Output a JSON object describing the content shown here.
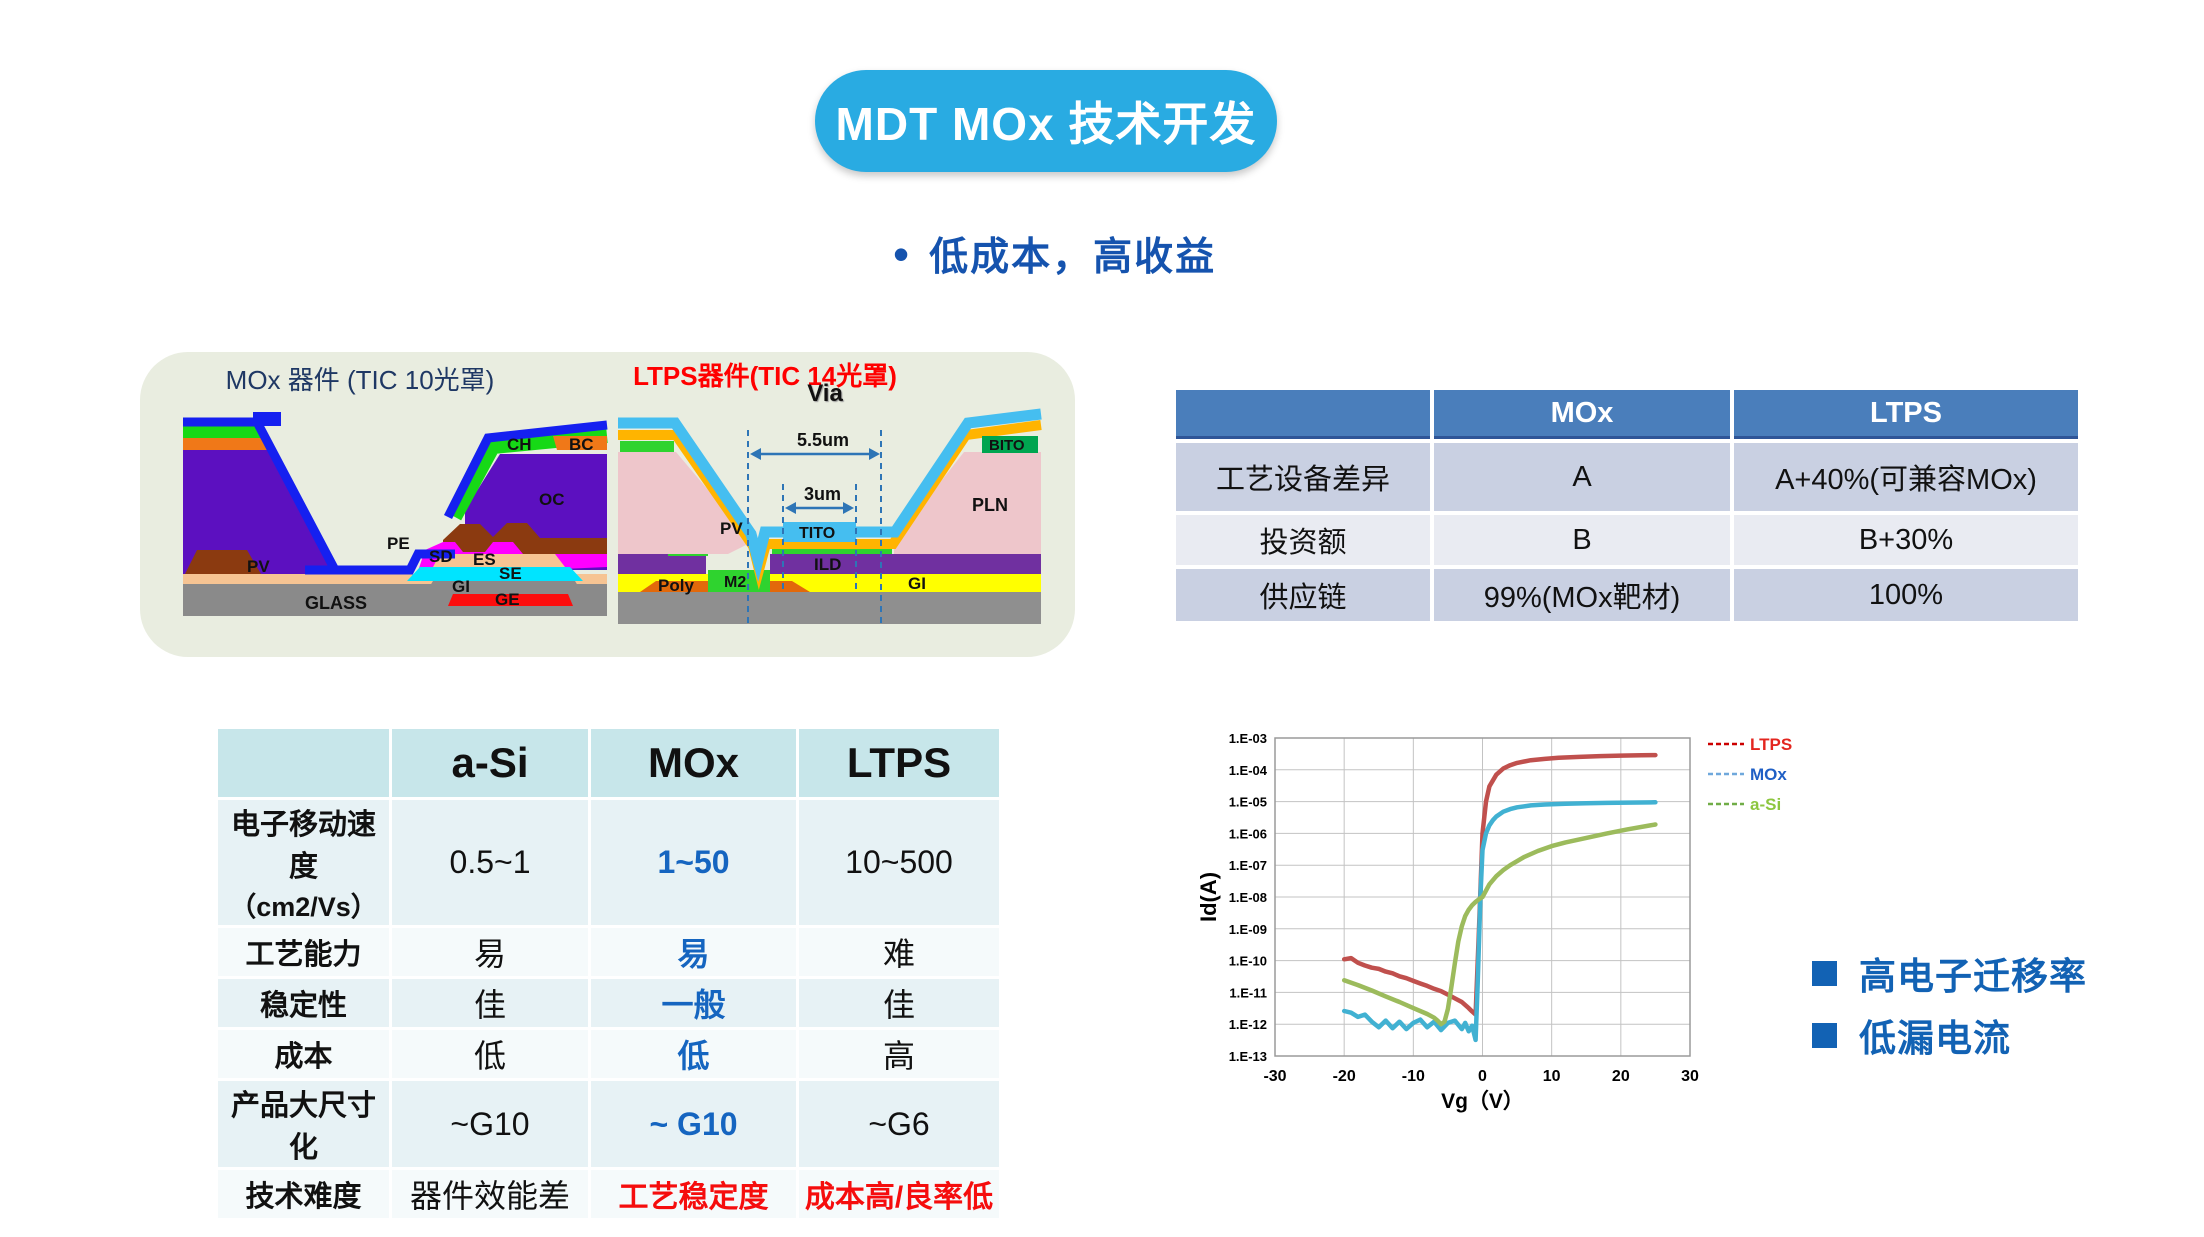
{
  "title": "MDT MOx 技术开发",
  "subtitle": "低成本，高收益",
  "diagrams": {
    "panel": {
      "mox_title": "MOx 器件 (TIC 10光罩)",
      "ltps_title": "LTPS器件(TIC 14光罩)",
      "via": "Via"
    },
    "mox_labels": {
      "ch": "CH",
      "bc": "BC",
      "oc": "OC",
      "pe": "PE",
      "pv": "PV",
      "sd": "SD",
      "es": "ES",
      "se": "SE",
      "gi": "GI",
      "ge": "GE",
      "glass": "GLASS"
    },
    "ltps_labels": {
      "bito": "BITO",
      "pln": "PLN",
      "pv": "PV",
      "tito": "TITO",
      "ild": "ILD",
      "m2": "M2",
      "poly": "Poly",
      "gi": "GI",
      "dim_outer": "5.5um",
      "dim_inner": "3um"
    }
  },
  "process_table": {
    "col_headers": [
      "MOx",
      "LTPS"
    ],
    "rows": [
      {
        "label": "工艺设备差异",
        "cells": [
          "A",
          "A+40%(可兼容MOx)"
        ]
      },
      {
        "label": "投资额",
        "cells": [
          "B",
          "B+30%"
        ]
      },
      {
        "label": "供应链",
        "cells": [
          "99%(MOx靶材)",
          "100%"
        ]
      }
    ]
  },
  "compare_table": {
    "col_headers": [
      "a-Si",
      "MOx",
      "LTPS"
    ],
    "rows": [
      {
        "label": "电子移动速度",
        "label2": "（cm2/Vs）",
        "cells": [
          "0.5~1",
          "1~50",
          "10~500"
        ]
      },
      {
        "label": "工艺能力",
        "cells": [
          "易",
          "易",
          "难"
        ]
      },
      {
        "label": "稳定性",
        "cells": [
          "佳",
          "一般",
          "佳"
        ]
      },
      {
        "label": "成本",
        "cells": [
          "低",
          "低",
          "高"
        ]
      },
      {
        "label": "产品大尺寸化",
        "cells": [
          "~G10",
          "~ G10",
          "~G6"
        ]
      },
      {
        "label": "技术难度",
        "cells": [
          "器件效能差",
          "工艺稳定度",
          "成本高/良率低"
        ]
      }
    ]
  },
  "chart_data": {
    "type": "line",
    "title": "",
    "xlabel": "Vg（V）",
    "ylabel": "Id(A)",
    "xlim": [
      -30,
      30
    ],
    "x_ticks": [
      -30,
      -20,
      -10,
      0,
      10,
      20,
      30
    ],
    "ylog_exp_range": [
      -3,
      -13
    ],
    "y_tick_labels": [
      "1.E-03",
      "1.E-04",
      "1.E-05",
      "1.E-06",
      "1.E-07",
      "1.E-08",
      "1.E-09",
      "1.E-10",
      "1.E-11",
      "1.E-12",
      "1.E-13"
    ],
    "grid": true,
    "legend_position": "right",
    "colors": {
      "grid": "#C3C3C3",
      "border": "#9A9A9A"
    },
    "series": [
      {
        "name": "LTPS",
        "color": "#C0504D",
        "dash_color": "#CC0000",
        "text_color": "#E3261F",
        "x": [
          -20,
          -19,
          -18,
          -17,
          -16,
          -15,
          -14,
          -13,
          -12,
          -11,
          -10,
          -9,
          -8,
          -7,
          -6,
          -5,
          -4,
          -3,
          -2,
          -1.5,
          -1,
          -0.5,
          0,
          0.5,
          1,
          2,
          3,
          4,
          5,
          7,
          9,
          11,
          14,
          17,
          20,
          23,
          25
        ],
        "y": [
          1.1e-10,
          1.2e-10,
          8.5e-11,
          7e-11,
          6e-11,
          5.5e-11,
          4.5e-11,
          4e-11,
          3.2e-11,
          2.8e-11,
          2.3e-11,
          1.9e-11,
          1.6e-11,
          1.3e-11,
          1.1e-11,
          8.5e-12,
          6.5e-12,
          5e-12,
          3.2e-12,
          2.5e-12,
          2e-12,
          1e-09,
          1e-06,
          1e-05,
          3e-05,
          7e-05,
          0.00011,
          0.00014,
          0.000165,
          0.0002,
          0.00022,
          0.00024,
          0.000255,
          0.00027,
          0.00028,
          0.000285,
          0.00029
        ]
      },
      {
        "name": "MOx",
        "color": "#41B1D2",
        "dash_color": "#6FA8DC",
        "text_color": "#1F5FC5",
        "x": [
          -20,
          -19,
          -18,
          -17,
          -16,
          -15,
          -14,
          -13,
          -12,
          -11,
          -10,
          -9,
          -8,
          -7,
          -6,
          -5,
          -4,
          -3,
          -2.5,
          -2,
          -1.5,
          -1,
          -0.7,
          -0.3,
          0,
          0.5,
          1,
          1.5,
          2,
          3,
          4,
          5,
          7,
          9,
          12,
          15,
          18,
          21,
          25
        ],
        "y": [
          2.6e-12,
          2.3e-12,
          1.7e-12,
          2e-12,
          1.2e-12,
          8e-13,
          1.3e-12,
          7.5e-13,
          1.2e-12,
          7e-13,
          1.1e-12,
          1.4e-12,
          8e-13,
          1.2e-12,
          6.5e-13,
          1.1e-12,
          1.3e-12,
          7e-13,
          1.1e-12,
          6e-13,
          9e-13,
          3.2e-13,
          2e-11,
          1e-08,
          3e-07,
          1e-06,
          1.8e-06,
          2.6e-06,
          3.4e-06,
          4.8e-06,
          5.8e-06,
          6.6e-06,
          7.6e-06,
          8.1e-06,
          8.6e-06,
          8.9e-06,
          9.1e-06,
          9.3e-06,
          9.5e-06
        ]
      },
      {
        "name": "a-Si",
        "color": "#9CBB5C",
        "dash_color": "#70AD47",
        "text_color": "#8DC63F",
        "x": [
          -20,
          -18,
          -16,
          -14,
          -12,
          -10,
          -8,
          -7,
          -6.5,
          -6,
          -5.5,
          -5,
          -4.5,
          -4,
          -3.5,
          -3,
          -2.5,
          -2,
          -1.5,
          -1,
          -0.5,
          0,
          1,
          2,
          3,
          4,
          6,
          8,
          10,
          12,
          15,
          18,
          21,
          25
        ],
        "y": [
          2.4e-11,
          1.7e-11,
          1.15e-11,
          7.5e-12,
          5e-12,
          3.2e-12,
          2.1e-12,
          1.6e-12,
          1.3e-12,
          1e-12,
          1.2e-12,
          3e-12,
          1.5e-11,
          8e-11,
          4e-10,
          1.2e-09,
          2.5e-09,
          4e-09,
          5.5e-09,
          7e-09,
          8.5e-09,
          1e-08,
          2.5e-08,
          4.5e-08,
          7e-08,
          1e-07,
          1.8e-07,
          2.8e-07,
          4e-07,
          5.2e-07,
          7.2e-07,
          1e-06,
          1.35e-06,
          1.9e-06
        ]
      }
    ]
  },
  "insights": [
    "高电子迁移率",
    "低漏电流"
  ]
}
